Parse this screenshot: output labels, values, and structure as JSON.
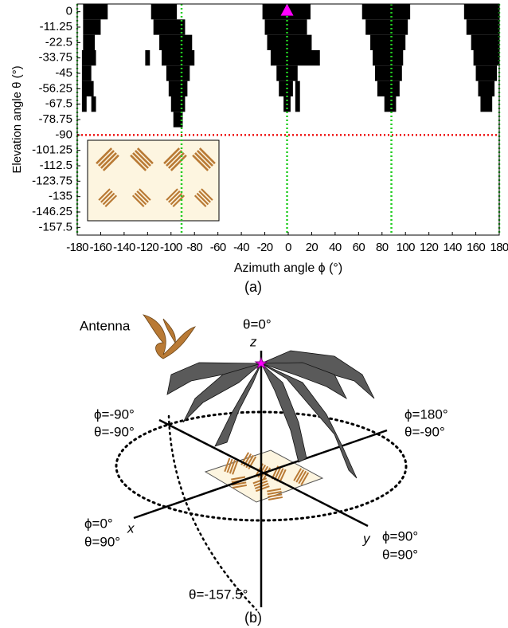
{
  "chart_data": {
    "type": "region",
    "xlabel": "Azimuth angle ϕ (°)",
    "ylabel": "Elevation angle θ (°)",
    "xlim": [
      -180,
      180
    ],
    "xticks": [
      -180,
      -160,
      -140,
      -120,
      -100,
      -80,
      -60,
      -40,
      -20,
      0,
      20,
      40,
      60,
      80,
      100,
      120,
      140,
      160,
      180
    ],
    "ylim": [
      5.625,
      -163.125
    ],
    "yticks": [
      0,
      -11.25,
      -22.5,
      -33.75,
      -45,
      -56.25,
      -67.5,
      -78.75,
      -90,
      -101.25,
      -112.5,
      -123.75,
      -135,
      -146.25,
      -157.5
    ],
    "color": "#000000",
    "regions": [
      {
        "theta": 0,
        "phi": [
          -175,
          -154
        ]
      },
      {
        "theta": 0,
        "phi": [
          -117,
          -95
        ]
      },
      {
        "theta": 0,
        "phi": [
          -22,
          19
        ]
      },
      {
        "theta": 0,
        "phi": [
          63,
          104
        ]
      },
      {
        "theta": 0,
        "phi": [
          150,
          180
        ]
      },
      {
        "theta": -11.25,
        "phi": [
          -175,
          -160
        ]
      },
      {
        "theta": -11.25,
        "phi": [
          -115,
          -88
        ]
      },
      {
        "theta": -11.25,
        "phi": [
          -20,
          16
        ]
      },
      {
        "theta": -11.25,
        "phi": [
          66,
          102
        ]
      },
      {
        "theta": -11.25,
        "phi": [
          152,
          180
        ]
      },
      {
        "theta": -22.5,
        "phi": [
          -175,
          -165
        ]
      },
      {
        "theta": -22.5,
        "phi": [
          -110,
          -82
        ]
      },
      {
        "theta": -22.5,
        "phi": [
          -18,
          20
        ]
      },
      {
        "theta": -22.5,
        "phi": [
          70,
          100
        ]
      },
      {
        "theta": -22.5,
        "phi": [
          156,
          180
        ]
      },
      {
        "theta": -33.75,
        "phi": [
          -176,
          -164
        ]
      },
      {
        "theta": -33.75,
        "phi": [
          -122,
          -118
        ]
      },
      {
        "theta": -33.75,
        "phi": [
          -108,
          -80
        ]
      },
      {
        "theta": -33.75,
        "phi": [
          -15,
          27
        ]
      },
      {
        "theta": -33.75,
        "phi": [
          72,
          98
        ]
      },
      {
        "theta": -33.75,
        "phi": [
          158,
          180
        ]
      },
      {
        "theta": -45,
        "phi": [
          -176,
          -168
        ]
      },
      {
        "theta": -45,
        "phi": [
          -104,
          -84
        ]
      },
      {
        "theta": -45,
        "phi": [
          -10,
          8
        ]
      },
      {
        "theta": -45,
        "phi": [
          74,
          97
        ]
      },
      {
        "theta": -45,
        "phi": [
          160,
          178
        ]
      },
      {
        "theta": -56.25,
        "phi": [
          -176,
          -166
        ]
      },
      {
        "theta": -56.25,
        "phi": [
          -102,
          -86
        ]
      },
      {
        "theta": -56.25,
        "phi": [
          -8,
          4
        ]
      },
      {
        "theta": -56.25,
        "phi": [
          6,
          10
        ]
      },
      {
        "theta": -56.25,
        "phi": [
          76,
          95
        ]
      },
      {
        "theta": -56.25,
        "phi": [
          162,
          176
        ]
      },
      {
        "theta": -67.5,
        "phi": [
          -176,
          -172
        ]
      },
      {
        "theta": -67.5,
        "phi": [
          -168,
          -164
        ]
      },
      {
        "theta": -67.5,
        "phi": [
          -100,
          -88
        ]
      },
      {
        "theta": -67.5,
        "phi": [
          -4,
          2
        ]
      },
      {
        "theta": -67.5,
        "phi": [
          6,
          10
        ]
      },
      {
        "theta": -67.5,
        "phi": [
          82,
          92
        ]
      },
      {
        "theta": -67.5,
        "phi": [
          164,
          174
        ]
      },
      {
        "theta": -78.75,
        "phi": [
          -98,
          -90
        ]
      }
    ],
    "reference_lines": {
      "phi": [
        -180,
        -91,
        -1,
        88,
        180
      ],
      "phi_color": "#22cc22",
      "theta": [
        -90
      ],
      "theta_color": "#ee1111"
    },
    "marker": {
      "phi": -1,
      "theta": 0,
      "color": "#ff00ff"
    }
  },
  "captions": {
    "a": "(a)",
    "b": "(b)"
  },
  "panel_b": {
    "antenna": "Antenna",
    "top": "θ=0°",
    "z": "z",
    "x": "x",
    "y": "y",
    "left_phi": "ϕ=-90°",
    "left_theta": "θ=-90°",
    "right_phi": "ϕ=180°",
    "right_theta": "θ=-90°",
    "x_phi": "ϕ=0°",
    "x_theta": "θ=90°",
    "y_phi": "ϕ=90°",
    "y_theta": "θ=90°",
    "bottom": "θ=-157.5°"
  }
}
